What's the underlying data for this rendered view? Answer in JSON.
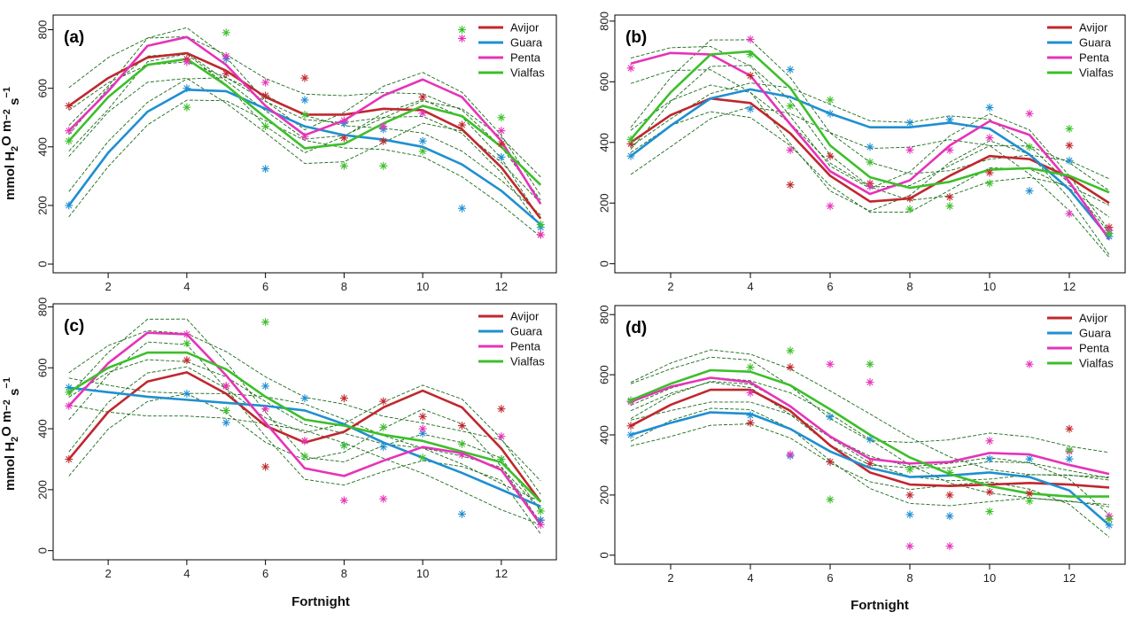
{
  "figure": {
    "ylabel": "mmol H2O m−2 s−1",
    "ylabel_parts": [
      "mmol H",
      "2",
      "O m",
      "−2",
      " s",
      "−1"
    ],
    "xlabel": "Fortnight"
  },
  "colors": {
    "Avijor": "#c0272d",
    "Guara": "#1f8fd1",
    "Penta": "#e633b8",
    "Vialfas": "#3cbf2a",
    "ci": "#1a6b1a"
  },
  "chart_data": [
    {
      "type": "line",
      "panel": "(a)",
      "x": [
        1,
        2,
        3,
        4,
        5,
        6,
        7,
        8,
        9,
        10,
        11,
        12,
        13
      ],
      "xticks": [
        2,
        4,
        6,
        8,
        10,
        12
      ],
      "yticks": [
        0,
        200,
        400,
        600,
        800
      ],
      "xlim": [
        0.6,
        13.4
      ],
      "ylim": [
        -30,
        850
      ],
      "legend": [
        "Avijor",
        "Guara",
        "Penta",
        "Vialfas"
      ],
      "series": [
        {
          "name": "Avijor",
          "values": [
            540,
            635,
            705,
            720,
            660,
            570,
            510,
            510,
            530,
            525,
            460,
            330,
            155
          ],
          "markers": [
            540,
            null,
            null,
            700,
            650,
            575,
            635,
            430,
            420,
            570,
            475,
            410,
            100
          ]
        },
        {
          "name": "Guara",
          "values": [
            200,
            380,
            520,
            595,
            590,
            530,
            470,
            440,
            425,
            400,
            340,
            250,
            135
          ],
          "markers": [
            200,
            null,
            null,
            600,
            700,
            325,
            560,
            480,
            460,
            420,
            190,
            365,
            125
          ]
        },
        {
          "name": "Penta",
          "values": [
            455,
            590,
            745,
            775,
            680,
            540,
            440,
            490,
            575,
            630,
            570,
            420,
            205
          ],
          "markers": [
            455,
            null,
            null,
            690,
            710,
            620,
            435,
            490,
            470,
            515,
            770,
            455,
            100
          ]
        },
        {
          "name": "Vialfas",
          "values": [
            420,
            570,
            680,
            700,
            610,
            500,
            395,
            410,
            480,
            540,
            505,
            400,
            270
          ],
          "markers": [
            420,
            null,
            null,
            535,
            790,
            470,
            510,
            335,
            335,
            385,
            800,
            500,
            135
          ]
        }
      ]
    },
    {
      "type": "line",
      "panel": "(b)",
      "x": [
        1,
        2,
        3,
        4,
        5,
        6,
        7,
        8,
        9,
        10,
        11,
        12,
        13
      ],
      "xticks": [
        2,
        4,
        6,
        8,
        10,
        12
      ],
      "yticks": [
        0,
        200,
        400,
        600,
        800
      ],
      "xlim": [
        0.6,
        13.4
      ],
      "ylim": [
        -30,
        820
      ],
      "legend": [
        "Avijor",
        "Guara",
        "Penta",
        "Vialfas"
      ],
      "series": [
        {
          "name": "Avijor",
          "values": [
            400,
            490,
            545,
            530,
            430,
            290,
            205,
            215,
            290,
            355,
            345,
            285,
            200
          ],
          "markers": [
            395,
            null,
            null,
            620,
            260,
            355,
            265,
            215,
            220,
            300,
            null,
            390,
            120
          ]
        },
        {
          "name": "Guara",
          "values": [
            355,
            455,
            545,
            575,
            550,
            495,
            450,
            450,
            465,
            445,
            360,
            245,
            85
          ],
          "markers": [
            355,
            null,
            null,
            510,
            640,
            495,
            385,
            465,
            475,
            515,
            240,
            340,
            90
          ]
        },
        {
          "name": "Penta",
          "values": [
            660,
            695,
            690,
            620,
            460,
            305,
            230,
            275,
            390,
            470,
            425,
            270,
            80
          ],
          "markers": [
            645,
            null,
            null,
            740,
            375,
            190,
            255,
            375,
            375,
            415,
            495,
            165,
            110
          ]
        },
        {
          "name": "Vialfas",
          "values": [
            410,
            565,
            690,
            700,
            580,
            390,
            285,
            250,
            270,
            310,
            315,
            290,
            235
          ],
          "markers": [
            410,
            null,
            null,
            690,
            520,
            540,
            335,
            180,
            190,
            265,
            385,
            445,
            100
          ]
        }
      ]
    },
    {
      "type": "line",
      "panel": "(c)",
      "x": [
        1,
        2,
        3,
        4,
        5,
        6,
        7,
        8,
        9,
        10,
        11,
        12,
        13
      ],
      "xticks": [
        2,
        4,
        6,
        8,
        10,
        12
      ],
      "yticks": [
        0,
        200,
        400,
        600,
        800
      ],
      "xlim": [
        0.6,
        13.4
      ],
      "ylim": [
        -30,
        810
      ],
      "legend": [
        "Avijor",
        "Guara",
        "Penta",
        "Vialfas"
      ],
      "series": [
        {
          "name": "Avijor",
          "values": [
            300,
            455,
            555,
            585,
            515,
            410,
            355,
            390,
            470,
            525,
            470,
            335,
            160
          ],
          "markers": [
            300,
            null,
            null,
            625,
            540,
            275,
            360,
            500,
            490,
            440,
            410,
            465,
            100
          ]
        },
        {
          "name": "Guara",
          "values": [
            535,
            520,
            505,
            495,
            485,
            475,
            460,
            415,
            355,
            305,
            255,
            200,
            145
          ],
          "markers": [
            535,
            null,
            null,
            515,
            420,
            540,
            500,
            345,
            340,
            385,
            120,
            300,
            100
          ]
        },
        {
          "name": "Penta",
          "values": [
            475,
            615,
            715,
            710,
            575,
            420,
            270,
            245,
            295,
            340,
            320,
            265,
            85
          ],
          "markers": [
            475,
            null,
            null,
            710,
            540,
            465,
            360,
            165,
            170,
            400,
            315,
            375,
            85
          ]
        },
        {
          "name": "Vialfas",
          "values": [
            520,
            600,
            650,
            650,
            595,
            505,
            430,
            410,
            380,
            360,
            325,
            290,
            160
          ],
          "markers": [
            520,
            null,
            null,
            680,
            460,
            750,
            310,
            345,
            405,
            305,
            350,
            300,
            130
          ]
        }
      ]
    },
    {
      "type": "line",
      "panel": "(d)",
      "x": [
        1,
        2,
        3,
        4,
        5,
        6,
        7,
        8,
        9,
        10,
        11,
        12,
        13
      ],
      "xticks": [
        2,
        4,
        6,
        8,
        10,
        12
      ],
      "yticks": [
        0,
        200,
        400,
        600,
        800
      ],
      "xlim": [
        0.6,
        13.4
      ],
      "ylim": [
        -30,
        830
      ],
      "legend": [
        "Avijor",
        "Guara",
        "Penta",
        "Vialfas"
      ],
      "series": [
        {
          "name": "Avijor",
          "values": [
            430,
            500,
            550,
            550,
            480,
            365,
            275,
            235,
            230,
            235,
            240,
            235,
            225
          ],
          "markers": [
            430,
            null,
            null,
            440,
            625,
            310,
            305,
            200,
            200,
            210,
            205,
            420,
            120
          ]
        },
        {
          "name": "Guara",
          "values": [
            400,
            440,
            475,
            470,
            420,
            345,
            290,
            260,
            265,
            275,
            260,
            215,
            100
          ],
          "markers": [
            400,
            null,
            null,
            465,
            330,
            460,
            385,
            135,
            130,
            320,
            320,
            320,
            100
          ]
        },
        {
          "name": "Penta",
          "values": [
            510,
            560,
            590,
            575,
            495,
            395,
            320,
            305,
            310,
            340,
            335,
            300,
            270
          ],
          "markers": [
            510,
            null,
            null,
            540,
            335,
            635,
            575,
            30,
            30,
            380,
            635,
            345,
            130
          ]
        },
        {
          "name": "Vialfas",
          "values": [
            515,
            570,
            615,
            610,
            565,
            485,
            400,
            325,
            270,
            230,
            205,
            195,
            195
          ],
          "markers": [
            515,
            null,
            null,
            625,
            680,
            185,
            635,
            285,
            275,
            145,
            180,
            350,
            120
          ]
        }
      ]
    }
  ]
}
